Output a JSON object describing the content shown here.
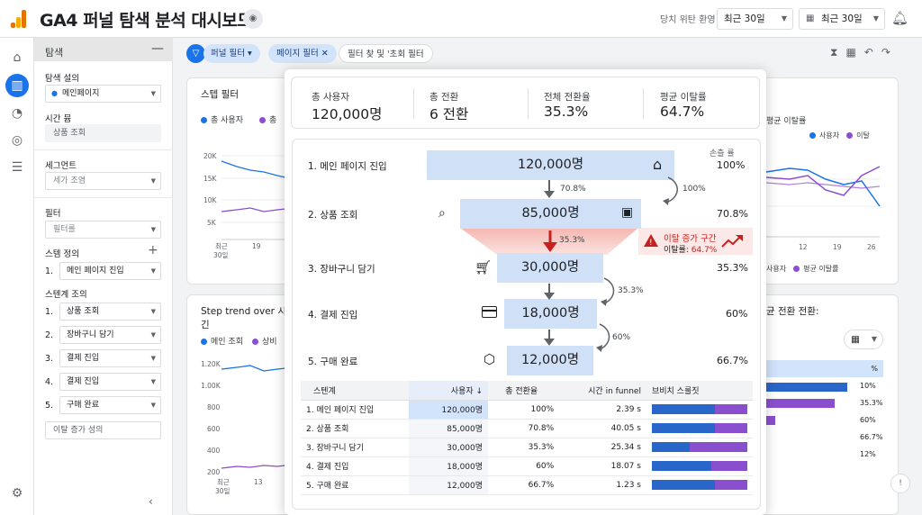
{
  "app": {
    "title": "GA4 퍼널 탐색 분석 대시보드",
    "compare_label": "당치 위탄 환영",
    "range_select": "최근 30일",
    "date_select": "최근 30일"
  },
  "explore_panel": {
    "header": "탐색",
    "settings_label": "탐색 설의",
    "settings_value": "메인페이지",
    "time_label": "시간 뮴",
    "time_value": "상품 조회",
    "segment_label": "세그먼트",
    "segment_placeholder": "세가 조염",
    "filter_label": "필터",
    "filter_placeholder": "필터를",
    "step_def_label": "스템 정의",
    "step_def": [
      {
        "num": "1.",
        "value": "메인 페이지 진입"
      }
    ],
    "steps_label": "스텐계 조의",
    "steps": [
      {
        "num": "1.",
        "value": "상품 조회"
      },
      {
        "num": "2.",
        "value": "장바구니 담기"
      },
      {
        "num": "3.",
        "value": "결제 진입"
      },
      {
        "num": "4.",
        "value": "결제 진입"
      },
      {
        "num": "5.",
        "value": "구매 완료"
      }
    ],
    "add_button": "이탈 증가 성의"
  },
  "filters": {
    "funnel_chip": "퍼널 필터",
    "page_chip": "페이지 필터",
    "search_chip": "필터 찾 및 '초회 필터"
  },
  "bg_cards": {
    "step_filter_title": "스텝 필터",
    "legend_users": "총 사용자",
    "legend_other": "총",
    "yticks": [
      "20K",
      "15K",
      "10K",
      "5K"
    ],
    "xticks": [
      "최근\n30일",
      "19"
    ],
    "step_trend_title": "Step trend over 시긴",
    "legend_main": "메인 조회",
    "legend_sub": "상비",
    "yticks2": [
      "1.20K",
      "1.00K",
      "800",
      "600",
      "400",
      "200"
    ],
    "xticks2": [
      "최근\n30일",
      "13"
    ],
    "right_legend_avg": "평균 이탈률",
    "right_legend_users": "사용자",
    "right_legend_bounce": "이탈",
    "right_xticks": [
      "12",
      "19",
      "26"
    ],
    "right_legend2_users": "사용자",
    "right_legend2_avg": "평균 이탈률",
    "right_card2_title": "균 전환 전환:",
    "right_table_header": "%",
    "right_table_values": [
      "10%",
      "35.3%",
      "60%",
      "66.7%",
      "12%"
    ]
  },
  "kpis": [
    {
      "label": "총 사용자",
      "value": "120,000명"
    },
    {
      "label": "총 전환",
      "value": "6 전환"
    },
    {
      "label": "전체 전환율",
      "value": "35.3%"
    },
    {
      "label": "평균 이탈률",
      "value": "64.7%"
    }
  ],
  "funnel": {
    "rate_header": "손츨 률",
    "steps": [
      {
        "label": "1. 메인 페이지 진입",
        "value": "120,000명",
        "pct": "100%"
      },
      {
        "label": "2. 상품 조회",
        "value": "85,000명",
        "pct": "70.8%"
      },
      {
        "label": "3. 장바구니 담기",
        "value": "30,000명",
        "pct": "35.3%"
      },
      {
        "label": "4. 결제 진입",
        "value": "18,000명",
        "pct": "60%"
      },
      {
        "label": "5. 구매 완료",
        "value": "12,000명",
        "pct": "66.7%"
      }
    ],
    "down_labels": [
      "70.8%",
      "35.3%"
    ],
    "side_labels": [
      "100%",
      "35.3%",
      "60%"
    ],
    "alert_title": "이탈 증가 구간",
    "alert_rate_label": "이탈률:",
    "alert_rate_value": "64.7%"
  },
  "table": {
    "headers": [
      "스텐계",
      "사용자 ↓",
      "총 전환율",
      "시간 in funnel",
      "브비치 스룰짓"
    ],
    "rows": [
      {
        "step": "1. 메인 페이지 진입",
        "users": "120,000명",
        "rate": "100%",
        "time": "2.39 s",
        "share": 0.66
      },
      {
        "step": "2. 상품 조회",
        "users": "85,000명",
        "rate": "70.8%",
        "time": "40.05 s",
        "share": 0.66
      },
      {
        "step": "3. 장바구니 담기",
        "users": "30,000명",
        "rate": "35.3%",
        "time": "25.34 s",
        "share": 0.4
      },
      {
        "step": "4. 결제 진입",
        "users": "18,000명",
        "rate": "60%",
        "time": "18.07 s",
        "share": 0.62
      },
      {
        "step": "5. 구매 완료",
        "users": "12,000명",
        "rate": "66.7%",
        "time": "1.23 s",
        "share": 0.66
      }
    ]
  },
  "colors": {
    "accent": "#1a73e8",
    "funnel_bar": "#cfe0f7",
    "alert": "#d93025",
    "purple": "#8a4fcf"
  }
}
